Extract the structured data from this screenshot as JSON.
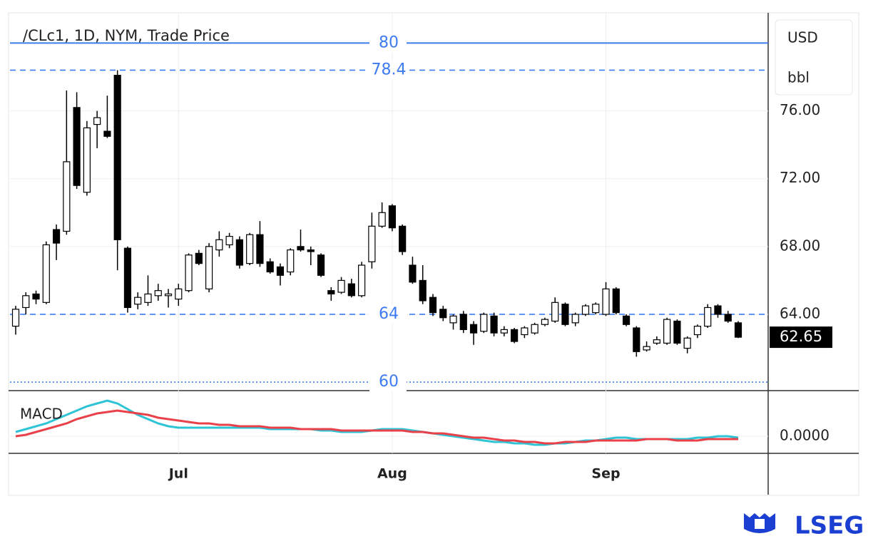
{
  "brand": "LSEG",
  "chart_data": [
    {
      "type": "candlestick",
      "title": "/CLc1, 1D, NYM, Trade Price",
      "currency": "USD",
      "unit": "bbl",
      "ylim": [
        59.5,
        81.7
      ],
      "yticks": [
        {
          "value": 64,
          "label": "64.00"
        },
        {
          "value": 68,
          "label": "68.00"
        },
        {
          "value": 72,
          "label": "72.00"
        },
        {
          "value": 76,
          "label": "76.00"
        }
      ],
      "grid": true,
      "up_color": "#ffffff",
      "down_color": "#000000",
      "level_color": "#3d7bf0",
      "levels": [
        {
          "value": 80,
          "style": "solid"
        },
        {
          "value": 78.4,
          "style": "dashed"
        },
        {
          "value": 64,
          "style": "dashed"
        },
        {
          "value": 60,
          "style": "dotted"
        }
      ],
      "last_price": 62.65,
      "series": [
        {
          "open": [
            63.3,
            64.4,
            65.2,
            64.7,
            69.0,
            68.9,
            76.2,
            71.2,
            75.2,
            74.8,
            78.1,
            67.9,
            64.6,
            64.7,
            65.1,
            65.1,
            64.9,
            65.4,
            67.6,
            65.5,
            67.8,
            68.1,
            68.4,
            67.0,
            68.7,
            67.1,
            66.8,
            66.5,
            68.0,
            67.8,
            67.5,
            65.4,
            65.3,
            65.8,
            65.1,
            67.1,
            69.2,
            70.4,
            69.2,
            66.9,
            66.0,
            65.0,
            64.3,
            63.5,
            64.0,
            63.4,
            63.0,
            63.9,
            62.9,
            63.1,
            62.8,
            62.9,
            63.4,
            63.6,
            64.6,
            63.5,
            64.0,
            64.1,
            64.0,
            65.5,
            63.9,
            63.2,
            61.9,
            62.3,
            62.3,
            63.6,
            62.0,
            62.8,
            63.3,
            64.5,
            64.0,
            63.5
          ],
          "high": [
            64.5,
            65.3,
            65.4,
            68.3,
            69.3,
            77.2,
            77.1,
            75.4,
            76.0,
            76.9,
            78.4,
            68.0,
            65.3,
            66.3,
            65.8,
            65.5,
            65.8,
            67.6,
            67.8,
            68.2,
            68.9,
            68.8,
            68.6,
            68.8,
            69.5,
            67.3,
            67.0,
            67.9,
            69.0,
            68.0,
            67.6,
            65.6,
            66.2,
            66.1,
            67.1,
            70.0,
            70.6,
            70.5,
            69.3,
            67.4,
            66.9,
            65.2,
            64.5,
            64.0,
            64.2,
            63.6,
            64.1,
            64.1,
            63.3,
            63.2,
            63.3,
            63.5,
            63.8,
            65.0,
            64.7,
            64.1,
            64.6,
            64.7,
            65.9,
            65.6,
            64.0,
            63.3,
            62.4,
            62.7,
            63.8,
            63.7,
            62.7,
            63.4,
            64.6,
            64.6,
            64.2,
            63.6
          ],
          "low": [
            62.8,
            64.0,
            64.6,
            64.6,
            67.2,
            68.7,
            71.4,
            71.0,
            73.8,
            74.4,
            66.6,
            64.1,
            64.3,
            64.5,
            64.8,
            64.4,
            64.5,
            65.3,
            66.9,
            65.3,
            67.4,
            67.9,
            66.7,
            66.9,
            66.8,
            66.4,
            65.7,
            66.3,
            67.7,
            66.9,
            66.2,
            64.8,
            65.2,
            65.0,
            65.0,
            66.7,
            69.1,
            68.9,
            67.5,
            65.8,
            64.6,
            63.9,
            63.6,
            63.1,
            62.9,
            62.2,
            62.9,
            62.7,
            62.7,
            62.3,
            62.6,
            62.8,
            63.3,
            63.5,
            63.3,
            63.3,
            63.9,
            64.0,
            63.9,
            64.0,
            63.3,
            61.5,
            61.8,
            62.2,
            62.2,
            62.2,
            61.7,
            62.6,
            63.2,
            63.8,
            63.5,
            62.6
          ],
          "close": [
            64.3,
            65.1,
            64.9,
            68.1,
            68.2,
            73.0,
            71.6,
            75.0,
            75.6,
            74.5,
            68.4,
            64.4,
            65.0,
            65.2,
            65.4,
            65.2,
            65.5,
            67.5,
            67.0,
            68.0,
            68.4,
            68.6,
            66.9,
            68.7,
            67.0,
            66.5,
            66.3,
            67.8,
            67.8,
            67.7,
            66.3,
            65.2,
            66.0,
            65.1,
            66.9,
            69.2,
            70.0,
            69.1,
            67.7,
            65.9,
            64.8,
            64.1,
            63.8,
            63.9,
            63.1,
            62.9,
            64.0,
            62.9,
            63.1,
            62.4,
            63.2,
            63.4,
            63.7,
            64.7,
            63.4,
            64.0,
            64.5,
            64.6,
            65.5,
            64.1,
            63.4,
            61.8,
            62.1,
            62.5,
            63.7,
            62.3,
            62.6,
            63.3,
            64.4,
            64.0,
            63.6,
            62.65
          ]
        }
      ]
    },
    {
      "type": "line",
      "title": "MACD",
      "ylim": [
        -1.2,
        3.2
      ],
      "yticks": [
        {
          "value": 0,
          "label": "0.0000"
        }
      ],
      "categories": [
        null,
        null,
        null,
        null,
        null,
        null,
        null,
        null,
        null,
        null,
        null,
        null,
        null,
        null,
        null,
        null,
        "Jul",
        null,
        null,
        null,
        null,
        null,
        null,
        null,
        null,
        null,
        null,
        null,
        null,
        null,
        null,
        null,
        null,
        null,
        null,
        null,
        null,
        "Aug",
        null,
        null,
        null,
        null,
        null,
        null,
        null,
        null,
        null,
        null,
        null,
        null,
        null,
        null,
        null,
        null,
        null,
        null,
        null,
        null,
        "Sep",
        null,
        null,
        null,
        null,
        null,
        null,
        null,
        null,
        null,
        null,
        null,
        null,
        null
      ],
      "series": [
        {
          "color": "#2ec4d6",
          "values": [
            0.3,
            0.5,
            0.7,
            0.9,
            1.2,
            1.5,
            1.8,
            2.1,
            2.3,
            2.5,
            2.3,
            1.9,
            1.5,
            1.2,
            0.9,
            0.7,
            0.6,
            0.6,
            0.6,
            0.6,
            0.6,
            0.6,
            0.6,
            0.6,
            0.6,
            0.5,
            0.5,
            0.5,
            0.5,
            0.5,
            0.4,
            0.4,
            0.3,
            0.3,
            0.3,
            0.4,
            0.5,
            0.5,
            0.5,
            0.4,
            0.3,
            0.2,
            0.1,
            0,
            -0.1,
            -0.2,
            -0.3,
            -0.4,
            -0.4,
            -0.5,
            -0.5,
            -0.6,
            -0.6,
            -0.5,
            -0.5,
            -0.4,
            -0.3,
            -0.3,
            -0.2,
            -0.1,
            -0.1,
            -0.2,
            -0.2,
            -0.2,
            -0.2,
            -0.2,
            -0.2,
            -0.1,
            -0.1,
            0,
            0,
            -0.1
          ]
        },
        {
          "color": "#e8414a",
          "values": [
            0,
            0.1,
            0.3,
            0.5,
            0.7,
            0.9,
            1.2,
            1.4,
            1.6,
            1.7,
            1.8,
            1.7,
            1.6,
            1.5,
            1.3,
            1.2,
            1.1,
            1.0,
            0.9,
            0.9,
            0.8,
            0.8,
            0.7,
            0.7,
            0.7,
            0.6,
            0.6,
            0.6,
            0.5,
            0.5,
            0.5,
            0.5,
            0.4,
            0.4,
            0.4,
            0.4,
            0.4,
            0.4,
            0.4,
            0.3,
            0.3,
            0.2,
            0.2,
            0.1,
            0,
            -0.1,
            -0.1,
            -0.2,
            -0.3,
            -0.3,
            -0.4,
            -0.4,
            -0.5,
            -0.5,
            -0.4,
            -0.4,
            -0.4,
            -0.3,
            -0.3,
            -0.3,
            -0.3,
            -0.3,
            -0.2,
            -0.2,
            -0.2,
            -0.3,
            -0.3,
            -0.3,
            -0.2,
            -0.2,
            -0.2,
            -0.2
          ]
        }
      ]
    }
  ]
}
